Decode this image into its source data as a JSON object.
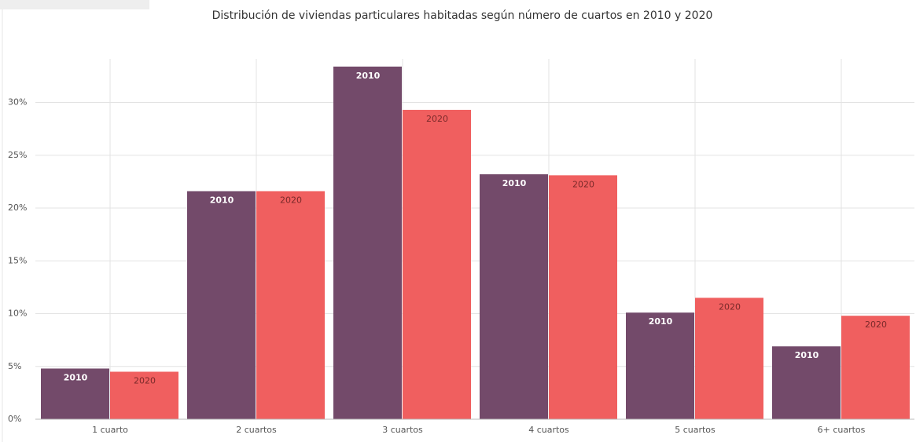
{
  "chart_data": {
    "type": "bar",
    "title": "Distribución de viviendas particulares habitadas según número de cuartos en 2010 y 2020",
    "categories": [
      "1 cuarto",
      "2 cuartos",
      "3 cuartos",
      "4 cuartos",
      "5 cuartos",
      "6+ cuartos"
    ],
    "series": [
      {
        "name": "2010",
        "color": "#734a6a",
        "values": [
          4.8,
          21.6,
          33.4,
          23.2,
          10.1,
          6.9
        ]
      },
      {
        "name": "2020",
        "color": "#f05f5f",
        "values": [
          4.5,
          21.6,
          29.3,
          23.1,
          11.5,
          9.8
        ]
      }
    ],
    "ylim": [
      0,
      34.5
    ],
    "yticks": [
      {
        "value": 0,
        "label": "0%"
      },
      {
        "value": 5,
        "label": "5%"
      },
      {
        "value": 10,
        "label": "10%"
      },
      {
        "value": 15,
        "label": "15%"
      },
      {
        "value": 20,
        "label": "20%"
      },
      {
        "value": 25,
        "label": "25%"
      },
      {
        "value": 30,
        "label": "30%"
      }
    ],
    "grid": true
  }
}
